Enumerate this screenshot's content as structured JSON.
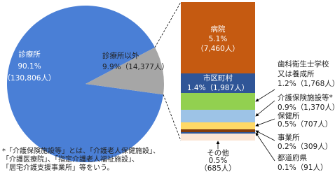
{
  "chart_data": {
    "type": "pie-of-bar",
    "pie": {
      "categories": [
        "診療所",
        "診療所以外"
      ],
      "values": [
        90.1,
        9.9
      ],
      "value_labels": [
        "90.1%",
        "9.9%"
      ],
      "counts": [
        130806,
        14377
      ],
      "count_labels": [
        "（130,806人）",
        "（14,377人）"
      ],
      "colors": [
        "#4a7fd6",
        "#a6a6a6"
      ]
    },
    "bar": {
      "series": [
        {
          "name": "病院",
          "value": 5.1,
          "value_label": "5.1%",
          "count": 7460,
          "count_label": "（7,460人）",
          "color": "#c55a11"
        },
        {
          "name": "市区町村",
          "value": 1.4,
          "value_label": "1.4%",
          "count": 1987,
          "count_label": "（1,987人）",
          "color": "#2f5597"
        },
        {
          "name": [
            "歯科衛生士学校",
            "又は養成所"
          ],
          "value": 1.2,
          "value_label": "1.2%",
          "count": 1768,
          "count_label": "（1,768人）",
          "color": "#92d050"
        },
        {
          "name": "介護保険施設等*",
          "value": 0.9,
          "value_label": "0.9%",
          "count": 1370,
          "count_label": "（1,370人）",
          "color": "#9dc3e6"
        },
        {
          "name": "保健所",
          "value": 0.5,
          "value_label": "0.5%",
          "count": 707,
          "count_label": "（707人）",
          "color": "#ffd966"
        },
        {
          "name": "事業所",
          "value": 0.2,
          "value_label": "0.2%",
          "count": 309,
          "count_label": "（309人）",
          "color": "#843c0c"
        },
        {
          "name": "都道府県",
          "value": 0.1,
          "value_label": "0.1%",
          "count": 91,
          "count_label": "（91人）",
          "color": "#2f5597"
        },
        {
          "name": "その他",
          "value": 0.5,
          "value_label": "0.5%",
          "count": 685,
          "count_label": "（685人）",
          "color": "#fbe5d6"
        }
      ]
    },
    "notes": [
      "*「介護保険施設等」とは、「介護老人保健施設」、",
      "「介護医療院」、「指定介護老人福祉施設」、",
      "「居宅介護支援事業所」等をいう。"
    ]
  }
}
